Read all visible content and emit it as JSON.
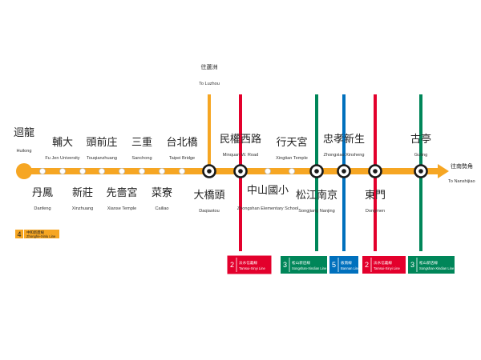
{
  "colors": {
    "main_line": "#F6A623",
    "tamsui_xinyi": "#E3002C",
    "songshan_xindian": "#008659",
    "bannan": "#0070BD",
    "ring_dark": "#1a1a1a"
  },
  "directions": {
    "luzhou": {
      "zh": "往蘆洲",
      "en": "To Luzhou"
    },
    "nanshijiao": {
      "zh": "往南勢角",
      "en": "To Nanshijiao"
    }
  },
  "line_badge": {
    "num": "4",
    "zh": "中和新蘆線",
    "en": "Zhonghe-Xinlu Line"
  },
  "stations": [
    {
      "zh": "迴龍",
      "en": "Huilong"
    },
    {
      "zh": "丹鳳",
      "en": "Danfeng"
    },
    {
      "zh": "輔大",
      "en": "Fu Jen University"
    },
    {
      "zh": "新莊",
      "en": "Xinzhuang"
    },
    {
      "zh": "頭前庄",
      "en": "Touqianzhuang"
    },
    {
      "zh": "先嗇宮",
      "en": "Xianse Temple"
    },
    {
      "zh": "三重",
      "en": "Sanchong"
    },
    {
      "zh": "菜寮",
      "en": "Cailiao"
    },
    {
      "zh": "台北橋",
      "en": "Taipei Bridge"
    },
    {
      "zh": "大橋頭",
      "en": "Daqiaotou"
    },
    {
      "zh": "民權西路",
      "en": "Minquan W. Road"
    },
    {
      "zh": "中山國小",
      "en": "Zhongshan Elementary School"
    },
    {
      "zh": "行天宮",
      "en": "Xingtian Temple"
    },
    {
      "zh": "松江南京",
      "en": "Songjiang Nanjing"
    },
    {
      "zh": "忠孝新生",
      "en": "Zhongxiao Xinsheng"
    },
    {
      "zh": "東門",
      "en": "Dongmen"
    },
    {
      "zh": "古亭",
      "en": "Guting"
    }
  ],
  "transfers": [
    {
      "num": "2",
      "zh": "淡水信義線",
      "en": "Tamsui-Xinyi Line",
      "color": "#E3002C"
    },
    {
      "num": "3",
      "zh": "松山新店線",
      "en": "Songshan-Xindian Line",
      "color": "#008659"
    },
    {
      "num": "5",
      "zh": "板南線",
      "en": "Bannan Line",
      "color": "#0070BD"
    },
    {
      "num": "2",
      "zh": "淡水信義線",
      "en": "Tamsui-Xinyi Line",
      "color": "#E3002C"
    },
    {
      "num": "3",
      "zh": "松山新店線",
      "en": "Songshan-Xindian Line",
      "color": "#008659"
    }
  ]
}
